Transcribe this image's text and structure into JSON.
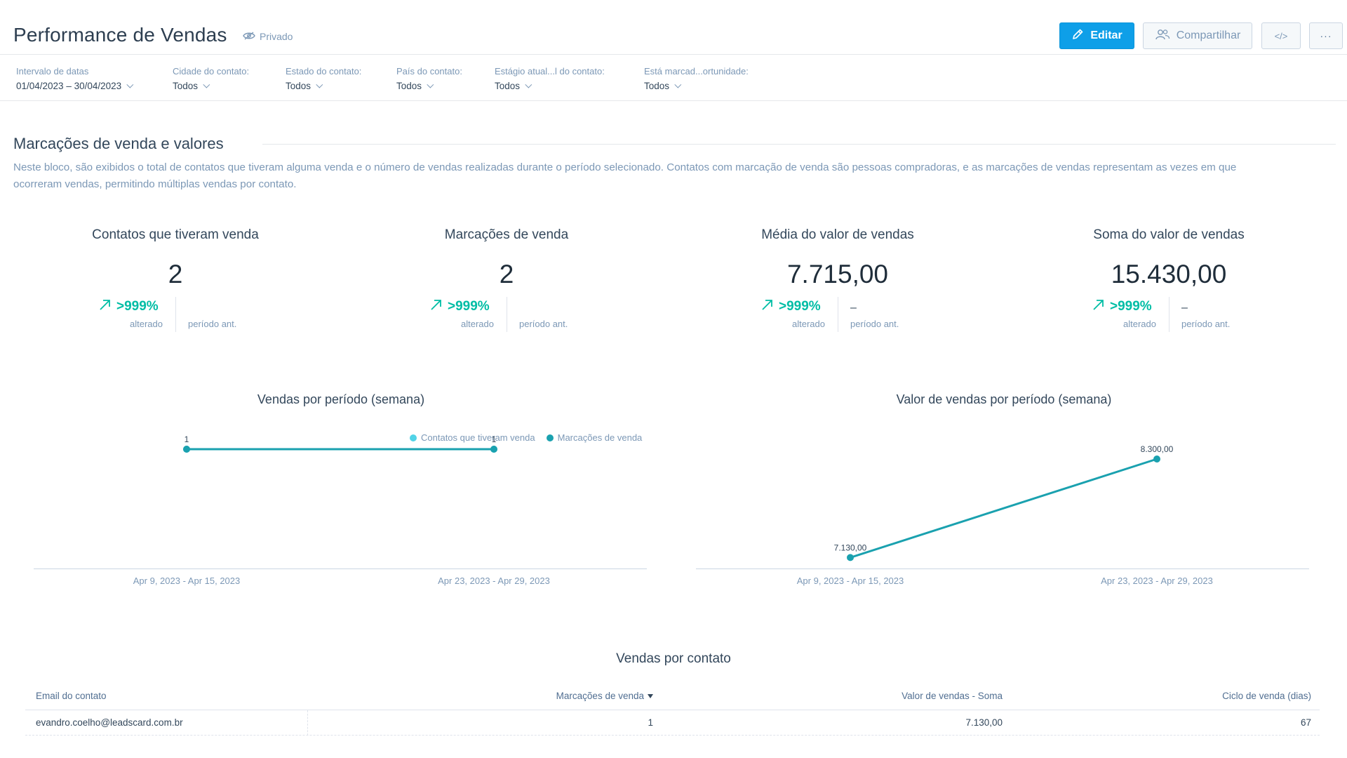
{
  "header": {
    "title": "Performance de Vendas",
    "privacy": "Privado",
    "edit_label": "Editar",
    "share_label": "Compartilhar",
    "code_label": "</>",
    "more_label": "···"
  },
  "filters": [
    {
      "label": "Intervalo de datas",
      "value": "01/04/2023 – 30/04/2023"
    },
    {
      "label": "Cidade do contato:",
      "value": "Todos"
    },
    {
      "label": "Estado do contato:",
      "value": "Todos"
    },
    {
      "label": "País do contato:",
      "value": "Todos"
    },
    {
      "label": "Estágio atual...l do contato:",
      "value": "Todos"
    },
    {
      "label": "Está marcad...ortunidade:",
      "value": "Todos"
    }
  ],
  "section": {
    "title": "Marcações de venda e valores",
    "description": "Neste bloco, são exibidos o total de contatos que tiveram alguma venda e o número de vendas realizadas durante o período selecionado. Contatos com marcação de venda são pessoas compradoras, e as marcações de vendas representam as vezes em que ocorreram vendas, permitindo múltiplas vendas por contato."
  },
  "kpis": [
    {
      "label": "Contatos que tiveram venda",
      "value": "2",
      "change": ">999%",
      "change_label": "alterado",
      "previous": "",
      "previous_label": "período ant."
    },
    {
      "label": "Marcações de venda",
      "value": "2",
      "change": ">999%",
      "change_label": "alterado",
      "previous": "",
      "previous_label": "período ant."
    },
    {
      "label": "Média do valor de vendas",
      "value": "7.715,00",
      "change": ">999%",
      "change_label": "alterado",
      "previous": "–",
      "previous_label": "período ant."
    },
    {
      "label": "Soma do valor de vendas",
      "value": "15.430,00",
      "change": ">999%",
      "change_label": "alterado",
      "previous": "–",
      "previous_label": "período ant."
    }
  ],
  "colors": {
    "accent": "#0e9fe8",
    "positive": "#00bda5",
    "series_contacts": "#51d3e7",
    "series_sales": "#1aa1af"
  },
  "chart_data": [
    {
      "type": "line",
      "title": "Vendas por período (semana)",
      "categories": [
        "Apr 9, 2023 - Apr 15, 2023",
        "Apr 23, 2023 - Apr 29, 2023"
      ],
      "series": [
        {
          "name": "Contatos que tiveram venda",
          "values": [
            1,
            1
          ]
        },
        {
          "name": "Marcações de venda",
          "values": [
            1,
            1
          ]
        }
      ],
      "data_labels": [
        "1",
        "1"
      ],
      "ylim": [
        0,
        2
      ],
      "legend": "top",
      "grid": false
    },
    {
      "type": "line",
      "title": "Valor de vendas por período (semana)",
      "categories": [
        "Apr 9, 2023 - Apr 15, 2023",
        "Apr 23, 2023 - Apr 29, 2023"
      ],
      "series": [
        {
          "values": [
            7130,
            8300
          ]
        }
      ],
      "data_labels": [
        "7.130,00",
        "8.300,00"
      ],
      "ylim": [
        7000,
        8500
      ],
      "grid": false
    }
  ],
  "table": {
    "title": "Vendas por contato",
    "columns": [
      "Email do contato",
      "Marcações de venda",
      "Valor de vendas - Soma",
      "Ciclo de venda (dias)"
    ],
    "rows": [
      [
        "evandro.coelho@leadscard.com.br",
        "1",
        "7.130,00",
        "67"
      ]
    ]
  }
}
